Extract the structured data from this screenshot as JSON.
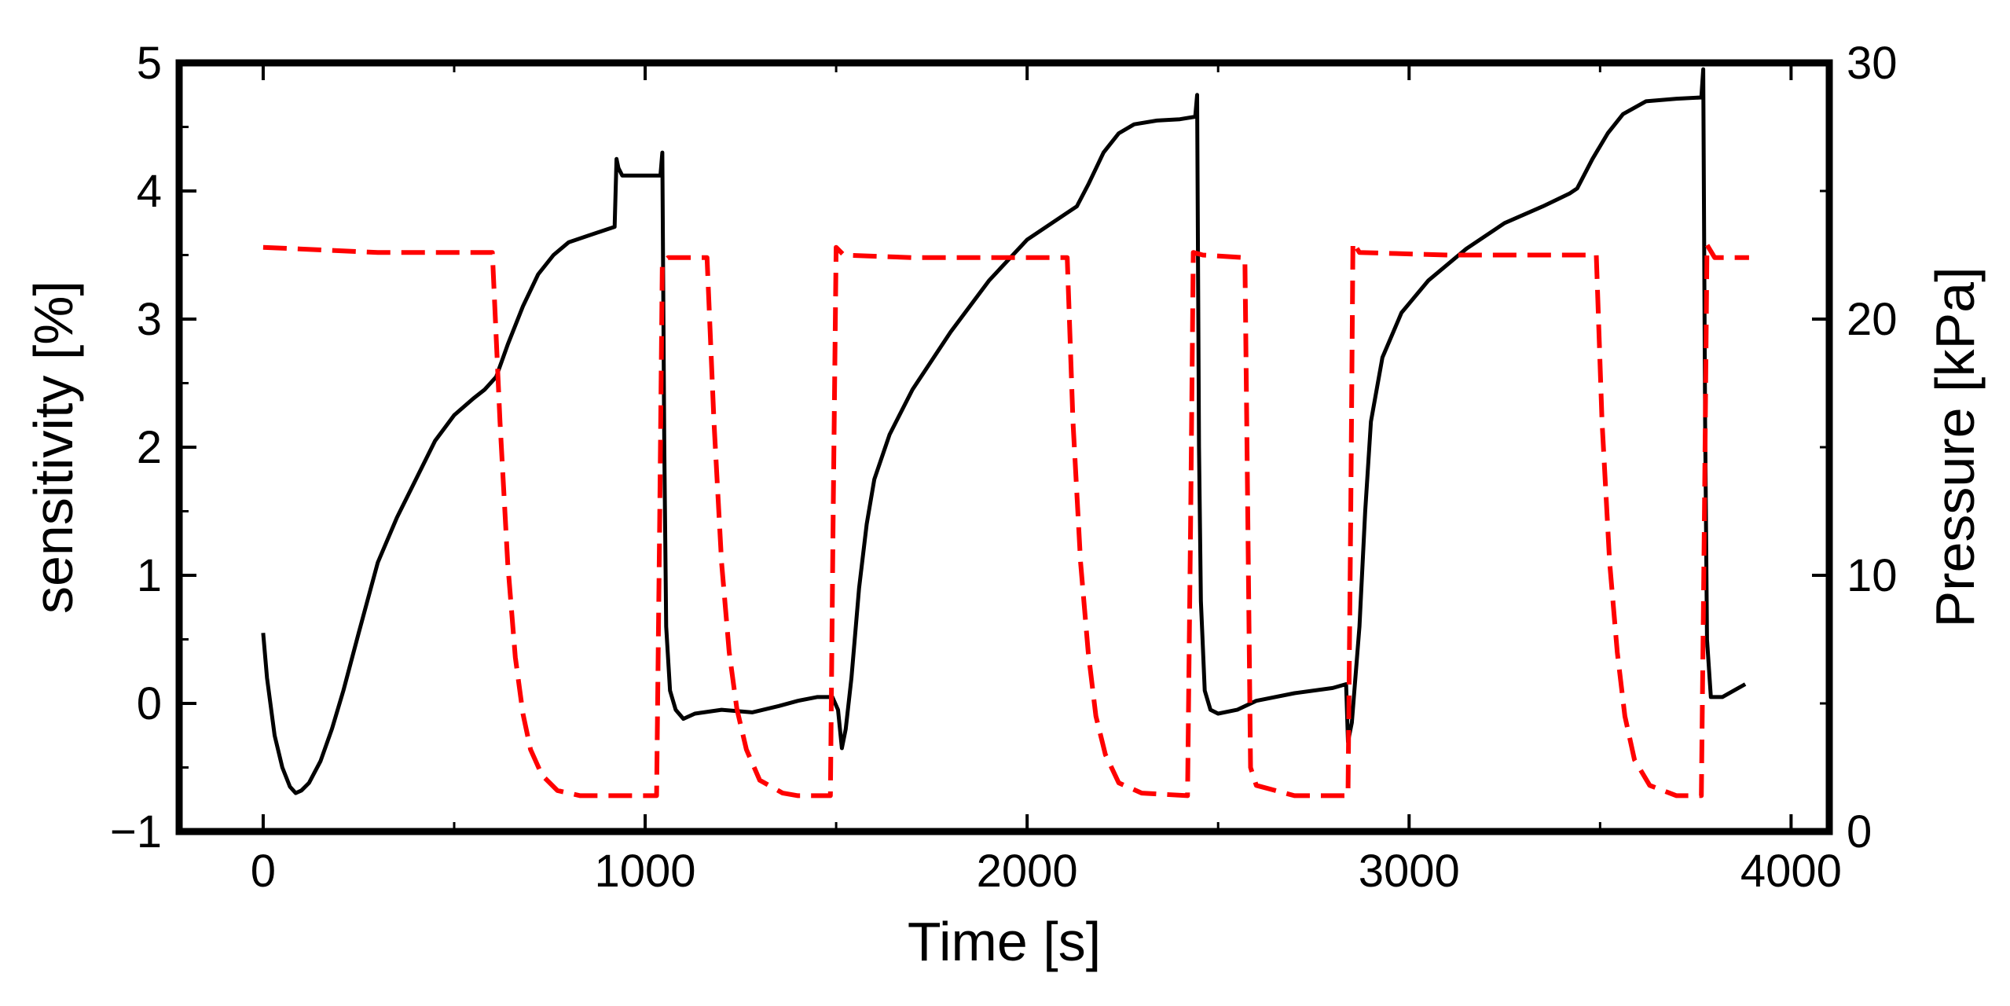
{
  "chart_data": {
    "type": "line",
    "title": "",
    "xlabel": "Time [s]",
    "ylabel_left": "sensitivity [%]",
    "ylabel_right": "Pressure [kPa]",
    "xlim": [
      -220,
      4100
    ],
    "ylim_left": [
      -1,
      5
    ],
    "ylim_right": [
      0,
      30
    ],
    "x_ticks": [
      0,
      1000,
      2000,
      3000,
      4000
    ],
    "x_tick_labels": [
      "0",
      "1000",
      "2000",
      "3000",
      "4000"
    ],
    "y_left_ticks": [
      -1,
      0,
      1,
      2,
      3,
      4,
      5
    ],
    "y_left_tick_labels": [
      "−1",
      "0",
      "1",
      "2",
      "3",
      "4",
      "5"
    ],
    "y_right_ticks": [
      0,
      10,
      20,
      30
    ],
    "y_right_tick_labels": [
      "0",
      "10",
      "20",
      "30"
    ],
    "grid": false,
    "legend": "none",
    "series": [
      {
        "name": "sensitivity",
        "axis": "left",
        "color": "#000000",
        "style": "solid",
        "points": [
          [
            0,
            0.55
          ],
          [
            10,
            0.2
          ],
          [
            30,
            -0.25
          ],
          [
            50,
            -0.5
          ],
          [
            70,
            -0.65
          ],
          [
            85,
            -0.7
          ],
          [
            100,
            -0.68
          ],
          [
            120,
            -0.62
          ],
          [
            150,
            -0.45
          ],
          [
            180,
            -0.2
          ],
          [
            210,
            0.1
          ],
          [
            250,
            0.55
          ],
          [
            300,
            1.1
          ],
          [
            350,
            1.45
          ],
          [
            400,
            1.75
          ],
          [
            450,
            2.05
          ],
          [
            500,
            2.25
          ],
          [
            550,
            2.38
          ],
          [
            580,
            2.45
          ],
          [
            610,
            2.55
          ],
          [
            640,
            2.8
          ],
          [
            680,
            3.1
          ],
          [
            720,
            3.35
          ],
          [
            760,
            3.5
          ],
          [
            800,
            3.6
          ],
          [
            850,
            3.65
          ],
          [
            900,
            3.7
          ],
          [
            920,
            3.72
          ],
          [
            925,
            4.25
          ],
          [
            930,
            4.18
          ],
          [
            940,
            4.12
          ],
          [
            980,
            4.12
          ],
          [
            1020,
            4.12
          ],
          [
            1040,
            4.12
          ],
          [
            1045,
            4.3
          ],
          [
            1050,
            2.0
          ],
          [
            1055,
            0.6
          ],
          [
            1065,
            0.1
          ],
          [
            1080,
            -0.05
          ],
          [
            1100,
            -0.12
          ],
          [
            1130,
            -0.08
          ],
          [
            1200,
            -0.05
          ],
          [
            1280,
            -0.07
          ],
          [
            1350,
            -0.02
          ],
          [
            1400,
            0.02
          ],
          [
            1450,
            0.05
          ],
          [
            1490,
            0.05
          ],
          [
            1505,
            -0.05
          ],
          [
            1515,
            -0.35
          ],
          [
            1525,
            -0.2
          ],
          [
            1540,
            0.2
          ],
          [
            1560,
            0.9
          ],
          [
            1580,
            1.4
          ],
          [
            1600,
            1.75
          ],
          [
            1640,
            2.1
          ],
          [
            1700,
            2.45
          ],
          [
            1800,
            2.9
          ],
          [
            1900,
            3.3
          ],
          [
            2000,
            3.62
          ],
          [
            2100,
            3.82
          ],
          [
            2130,
            3.88
          ],
          [
            2160,
            4.05
          ],
          [
            2200,
            4.3
          ],
          [
            2240,
            4.45
          ],
          [
            2280,
            4.52
          ],
          [
            2340,
            4.55
          ],
          [
            2400,
            4.56
          ],
          [
            2440,
            4.58
          ],
          [
            2445,
            4.75
          ],
          [
            2450,
            2.0
          ],
          [
            2455,
            0.8
          ],
          [
            2465,
            0.1
          ],
          [
            2480,
            -0.05
          ],
          [
            2500,
            -0.08
          ],
          [
            2550,
            -0.05
          ],
          [
            2600,
            0.02
          ],
          [
            2700,
            0.08
          ],
          [
            2800,
            0.12
          ],
          [
            2835,
            0.15
          ],
          [
            2840,
            -0.3
          ],
          [
            2850,
            -0.15
          ],
          [
            2870,
            0.6
          ],
          [
            2885,
            1.5
          ],
          [
            2900,
            2.2
          ],
          [
            2930,
            2.7
          ],
          [
            2980,
            3.05
          ],
          [
            3050,
            3.3
          ],
          [
            3150,
            3.55
          ],
          [
            3250,
            3.75
          ],
          [
            3350,
            3.88
          ],
          [
            3420,
            3.98
          ],
          [
            3440,
            4.02
          ],
          [
            3480,
            4.25
          ],
          [
            3520,
            4.45
          ],
          [
            3560,
            4.6
          ],
          [
            3620,
            4.7
          ],
          [
            3700,
            4.72
          ],
          [
            3765,
            4.73
          ],
          [
            3770,
            4.95
          ],
          [
            3775,
            2.2
          ],
          [
            3780,
            0.5
          ],
          [
            3790,
            0.05
          ],
          [
            3820,
            0.05
          ],
          [
            3850,
            0.1
          ],
          [
            3880,
            0.15
          ]
        ]
      },
      {
        "name": "Pressure",
        "axis": "right",
        "color": "#ff0000",
        "style": "dashed",
        "points": [
          [
            0,
            22.8
          ],
          [
            300,
            22.6
          ],
          [
            590,
            22.6
          ],
          [
            600,
            22.6
          ],
          [
            620,
            16.0
          ],
          [
            640,
            10.5
          ],
          [
            660,
            6.8
          ],
          [
            680,
            4.6
          ],
          [
            700,
            3.2
          ],
          [
            730,
            2.2
          ],
          [
            770,
            1.6
          ],
          [
            830,
            1.4
          ],
          [
            1030,
            1.4
          ],
          [
            1038,
            12.0
          ],
          [
            1045,
            22.2
          ],
          [
            1060,
            22.4
          ],
          [
            1155,
            22.4
          ],
          [
            1162,
            22.4
          ],
          [
            1180,
            16.0
          ],
          [
            1200,
            10.5
          ],
          [
            1220,
            7.0
          ],
          [
            1240,
            4.8
          ],
          [
            1265,
            3.2
          ],
          [
            1300,
            2.0
          ],
          [
            1360,
            1.5
          ],
          [
            1400,
            1.4
          ],
          [
            1485,
            1.4
          ],
          [
            1492,
            12.0
          ],
          [
            1500,
            22.8
          ],
          [
            1520,
            22.5
          ],
          [
            1700,
            22.4
          ],
          [
            2095,
            22.4
          ],
          [
            2105,
            22.4
          ],
          [
            2120,
            16.0
          ],
          [
            2140,
            10.5
          ],
          [
            2160,
            7.0
          ],
          [
            2180,
            4.5
          ],
          [
            2205,
            3.0
          ],
          [
            2240,
            1.9
          ],
          [
            2300,
            1.5
          ],
          [
            2420,
            1.4
          ],
          [
            2428,
            12.0
          ],
          [
            2435,
            22.6
          ],
          [
            2460,
            22.5
          ],
          [
            2570,
            22.4
          ],
          [
            2578,
            12.0
          ],
          [
            2585,
            2.5
          ],
          [
            2600,
            1.8
          ],
          [
            2700,
            1.4
          ],
          [
            2840,
            1.4
          ],
          [
            2847,
            12.0
          ],
          [
            2853,
            23.0
          ],
          [
            2870,
            22.6
          ],
          [
            3100,
            22.5
          ],
          [
            3480,
            22.5
          ],
          [
            3490,
            22.5
          ],
          [
            3505,
            16.0
          ],
          [
            3525,
            10.5
          ],
          [
            3545,
            7.0
          ],
          [
            3565,
            4.5
          ],
          [
            3590,
            2.8
          ],
          [
            3630,
            1.8
          ],
          [
            3700,
            1.4
          ],
          [
            3765,
            1.4
          ],
          [
            3773,
            12.0
          ],
          [
            3780,
            22.9
          ],
          [
            3800,
            22.4
          ],
          [
            3890,
            22.4
          ]
        ]
      }
    ]
  }
}
